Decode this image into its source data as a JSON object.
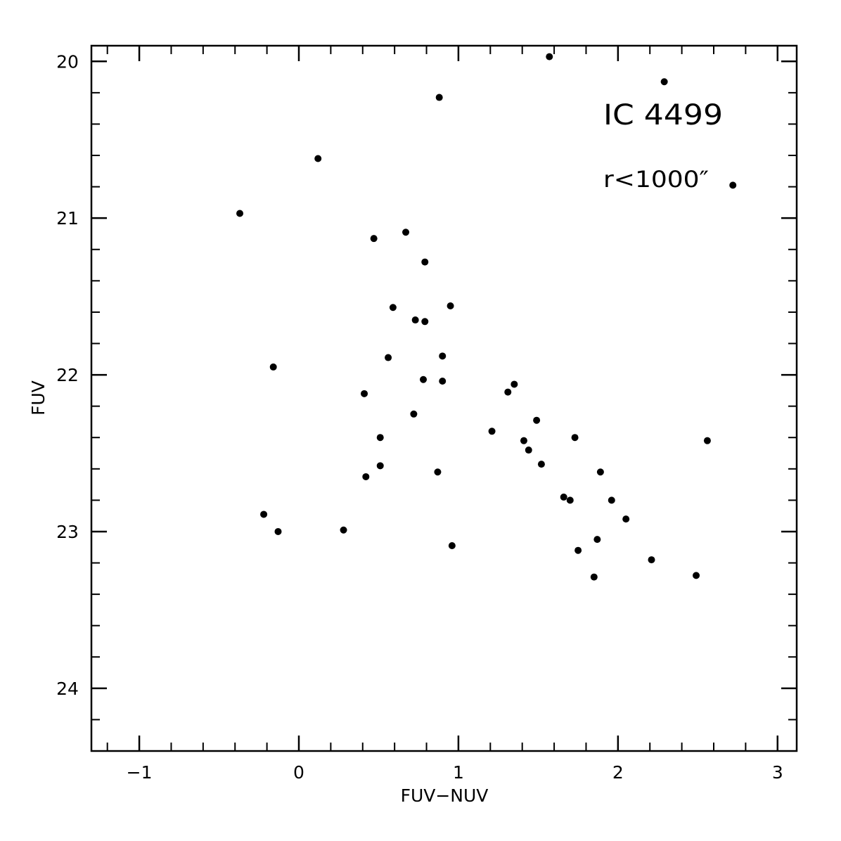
{
  "chart_data": {
    "type": "scatter",
    "title": "",
    "xlabel": "FUV−NUV",
    "ylabel": "FUV",
    "xlim": [
      -1.3,
      3.12
    ],
    "ylim": [
      24.4,
      19.9
    ],
    "y_inverted": true,
    "grid": false,
    "x_ticks": [
      -1,
      0,
      1,
      2,
      3
    ],
    "x_tick_labels": [
      "−1",
      "0",
      "1",
      "2",
      "3"
    ],
    "x_minor_step": 0.2,
    "y_ticks": [
      20,
      21,
      22,
      23,
      24
    ],
    "y_tick_labels": [
      "20",
      "21",
      "22",
      "23",
      "24"
    ],
    "y_minor_step": 0.2,
    "annotations": [
      "IC 4499",
      "r<1000″"
    ],
    "marker_color": "#000000",
    "points": [
      {
        "x": 1.57,
        "y": 19.97
      },
      {
        "x": 2.29,
        "y": 20.13
      },
      {
        "x": 0.88,
        "y": 20.23
      },
      {
        "x": 0.12,
        "y": 20.62
      },
      {
        "x": 2.72,
        "y": 20.79
      },
      {
        "x": -0.37,
        "y": 20.97
      },
      {
        "x": 0.67,
        "y": 21.09
      },
      {
        "x": 0.47,
        "y": 21.13
      },
      {
        "x": 0.79,
        "y": 21.28
      },
      {
        "x": 0.59,
        "y": 21.57
      },
      {
        "x": 0.95,
        "y": 21.56
      },
      {
        "x": 0.73,
        "y": 21.65
      },
      {
        "x": 0.79,
        "y": 21.66
      },
      {
        "x": 0.56,
        "y": 21.89
      },
      {
        "x": 0.9,
        "y": 21.88
      },
      {
        "x": -0.16,
        "y": 21.95
      },
      {
        "x": 0.78,
        "y": 22.03
      },
      {
        "x": 0.9,
        "y": 22.04
      },
      {
        "x": 1.35,
        "y": 22.06
      },
      {
        "x": 1.31,
        "y": 22.11
      },
      {
        "x": 0.41,
        "y": 22.12
      },
      {
        "x": 0.72,
        "y": 22.25
      },
      {
        "x": 1.49,
        "y": 22.29
      },
      {
        "x": 1.21,
        "y": 22.36
      },
      {
        "x": 0.51,
        "y": 22.4
      },
      {
        "x": 1.73,
        "y": 22.4
      },
      {
        "x": 1.41,
        "y": 22.42
      },
      {
        "x": 2.56,
        "y": 22.42
      },
      {
        "x": 1.44,
        "y": 22.48
      },
      {
        "x": 0.51,
        "y": 22.58
      },
      {
        "x": 1.52,
        "y": 22.57
      },
      {
        "x": 0.87,
        "y": 22.62
      },
      {
        "x": 1.89,
        "y": 22.62
      },
      {
        "x": 0.42,
        "y": 22.65
      },
      {
        "x": 1.66,
        "y": 22.78
      },
      {
        "x": 1.7,
        "y": 22.8
      },
      {
        "x": 1.96,
        "y": 22.8
      },
      {
        "x": 2.05,
        "y": 22.92
      },
      {
        "x": -0.22,
        "y": 22.89
      },
      {
        "x": -0.13,
        "y": 23.0
      },
      {
        "x": 0.28,
        "y": 22.99
      },
      {
        "x": 1.87,
        "y": 23.05
      },
      {
        "x": 0.96,
        "y": 23.09
      },
      {
        "x": 1.75,
        "y": 23.12
      },
      {
        "x": 2.21,
        "y": 23.18
      },
      {
        "x": 1.85,
        "y": 23.29
      },
      {
        "x": 2.49,
        "y": 23.28
      }
    ]
  }
}
